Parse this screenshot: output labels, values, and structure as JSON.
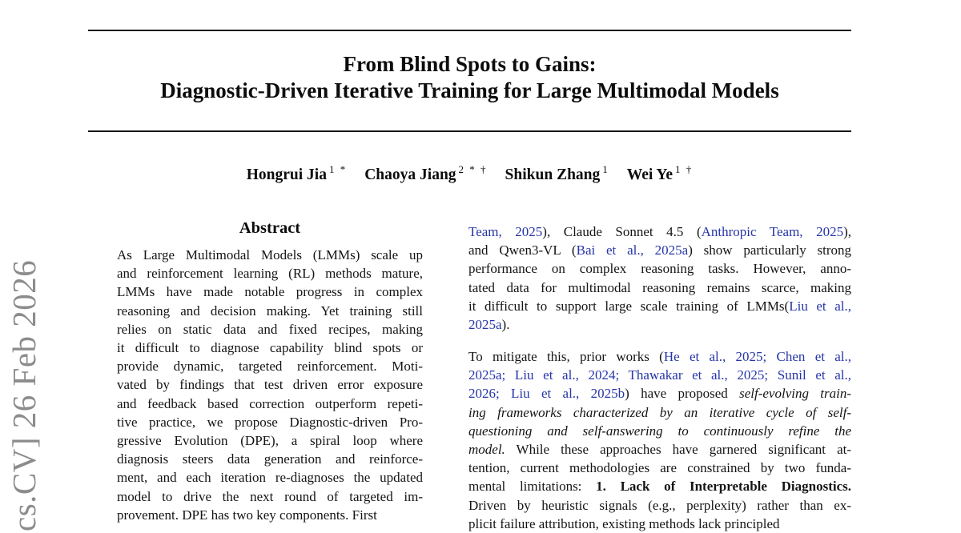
{
  "title": {
    "line1": "From Blind Spots to Gains:",
    "line2": "Diagnostic-Driven Iterative Training for Large Multimodal Models"
  },
  "authors": [
    {
      "name": "Hongrui Jia",
      "sup": "1 *"
    },
    {
      "name": "Chaoya Jiang",
      "sup": "2 * †"
    },
    {
      "name": "Shikun Zhang",
      "sup": "1"
    },
    {
      "name": "Wei Ye",
      "sup": "1 †"
    }
  ],
  "abstract": {
    "heading": "Abstract",
    "lines": [
      "As Large Multimodal Models (LMMs) scale up",
      "and reinforcement learning (RL) methods mature,",
      "LMMs have made notable progress in complex",
      "reasoning and decision making. Yet training still",
      "relies on static data and fixed recipes, making",
      "it difficult to diagnose capability blind spots or",
      "provide dynamic, targeted reinforcement. Moti-",
      "vated by findings that test driven error exposure",
      "and feedback based correction outperform repeti-",
      "tive practice, we propose Diagnostic-driven Pro-",
      "gressive Evolution (DPE), a spiral loop where",
      "diagnosis steers data generation and reinforce-",
      "ment, and each iteration re-diagnoses the updated",
      "model to drive the next round of targeted im-",
      "provement. DPE has two key components. First"
    ]
  },
  "right_column": {
    "paragraph1": {
      "lines": [
        [
          [
            "c",
            "Team, 2025"
          ],
          [
            "n",
            "), Claude Sonnet 4.5 ("
          ],
          [
            "c",
            "Anthropic Team, 2025"
          ],
          [
            "n",
            "),"
          ]
        ],
        [
          [
            "n",
            "and Qwen3-VL ("
          ],
          [
            "c",
            "Bai et al., 2025a"
          ],
          [
            "n",
            ") show particularly strong"
          ]
        ],
        [
          [
            "n",
            "performance on complex reasoning tasks. However, anno-"
          ]
        ],
        [
          [
            "n",
            "tated data for multimodal reasoning remains scarce, making"
          ]
        ],
        [
          [
            "n",
            "it difficult to support large scale training of LMMs("
          ],
          [
            "c",
            "Liu et al.,"
          ]
        ],
        [
          [
            "c",
            "2025a"
          ],
          [
            "n",
            ")."
          ]
        ]
      ]
    },
    "paragraph2": {
      "lines": [
        [
          [
            "n",
            "To mitigate this, prior works ("
          ],
          [
            "c",
            "He et al., 2025; "
          ],
          [
            "c",
            "Chen et al.,"
          ]
        ],
        [
          [
            "c",
            "2025a; "
          ],
          [
            "c",
            "Liu et al., 2024; "
          ],
          [
            "c",
            "Thawakar et al., 2025; "
          ],
          [
            "c",
            "Sunil et al.,"
          ]
        ],
        [
          [
            "c",
            "2026; "
          ],
          [
            "c",
            "Liu et al., 2025b"
          ],
          [
            "n",
            ") have proposed "
          ],
          [
            "i",
            "self-evolving train-"
          ]
        ],
        [
          [
            "i",
            "ing frameworks characterized by an iterative cycle of self-"
          ]
        ],
        [
          [
            "i",
            "questioning and self-answering to continuously refine the"
          ]
        ],
        [
          [
            "i",
            "model."
          ],
          [
            "n",
            " While these approaches have garnered significant at-"
          ]
        ],
        [
          [
            "n",
            "tention, current methodologies are constrained by two funda-"
          ]
        ],
        [
          [
            "n",
            "mental limitations: "
          ],
          [
            "b",
            "1. Lack of Interpretable Diagnostics."
          ]
        ],
        [
          [
            "n",
            "Driven by heuristic signals (e.g., perplexity) rather than ex-"
          ]
        ],
        [
          [
            "n",
            "plicit failure attribution, existing methods lack principled"
          ]
        ]
      ]
    }
  },
  "watermark": {
    "text": "cs.CV] 26 Feb 2026",
    "color": "#8c8c8c"
  },
  "colors": {
    "citation_link": "#2635a8",
    "body_text": "#141414",
    "rule": "#161616"
  }
}
